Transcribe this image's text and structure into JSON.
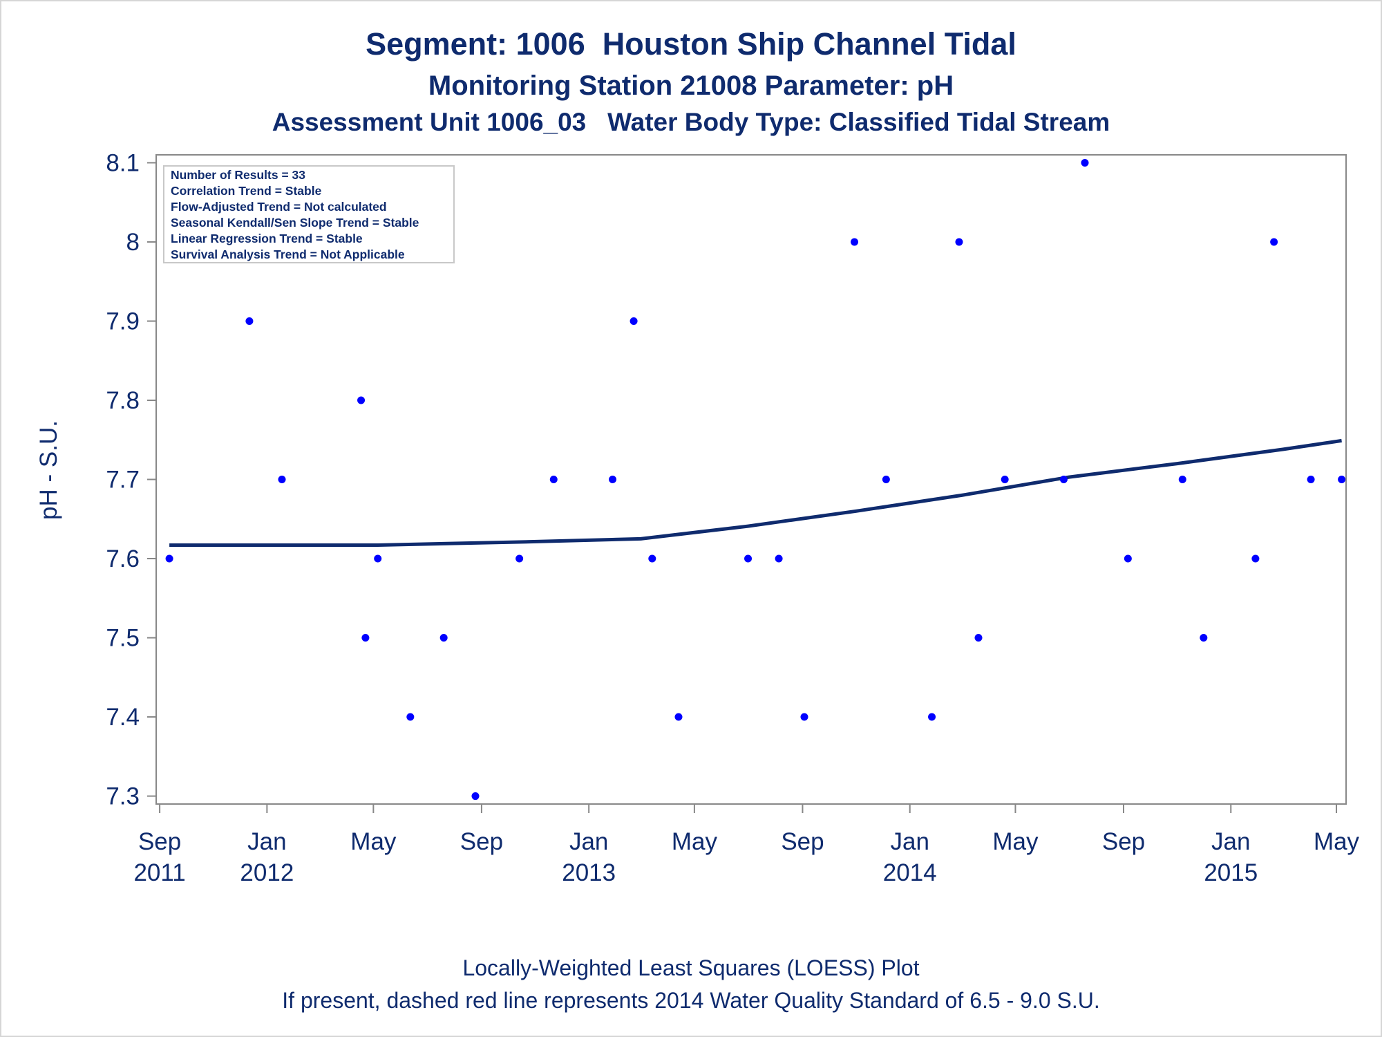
{
  "chart_data": {
    "type": "scatter",
    "title": "Segment: 1006  Houston Ship Channel Tidal",
    "subtitle": "Monitoring Station 21008 Parameter: pH",
    "subtitle2": "Assessment Unit 1006_03   Water Body Type: Classified Tidal Stream",
    "xlabel": "",
    "ylabel": "pH - S.U.",
    "ylim": [
      7.29,
      8.11
    ],
    "yticks": [
      7.3,
      7.4,
      7.5,
      7.6,
      7.7,
      7.8,
      7.9,
      8.0,
      8.1
    ],
    "ytick_labels": [
      "7.3",
      "7.4",
      "7.5",
      "7.6",
      "7.7",
      "7.8",
      "7.9",
      "8",
      "8.1"
    ],
    "xlim": [
      "2011-08-28",
      "2015-05-12"
    ],
    "xticks": [
      {
        "date": "2011-09-01",
        "month": "Sep",
        "year": "2011"
      },
      {
        "date": "2012-01-01",
        "month": "Jan",
        "year": "2012"
      },
      {
        "date": "2012-05-01",
        "month": "May",
        "year": ""
      },
      {
        "date": "2012-09-01",
        "month": "Sep",
        "year": ""
      },
      {
        "date": "2013-01-01",
        "month": "Jan",
        "year": "2013"
      },
      {
        "date": "2013-05-01",
        "month": "May",
        "year": ""
      },
      {
        "date": "2013-09-01",
        "month": "Sep",
        "year": ""
      },
      {
        "date": "2014-01-01",
        "month": "Jan",
        "year": "2014"
      },
      {
        "date": "2014-05-01",
        "month": "May",
        "year": ""
      },
      {
        "date": "2014-09-01",
        "month": "Sep",
        "year": ""
      },
      {
        "date": "2015-01-01",
        "month": "Jan",
        "year": "2015"
      },
      {
        "date": "2015-05-01",
        "month": "May",
        "year": ""
      }
    ],
    "grid": false,
    "series": [
      {
        "type": "scatter",
        "color": "#0000ff",
        "points": [
          {
            "x": "2011-09-12",
            "y": 7.6
          },
          {
            "x": "2011-12-12",
            "y": 7.9
          },
          {
            "x": "2012-01-18",
            "y": 7.7
          },
          {
            "x": "2012-04-17",
            "y": 7.8
          },
          {
            "x": "2012-04-22",
            "y": 7.5
          },
          {
            "x": "2012-05-06",
            "y": 7.6
          },
          {
            "x": "2012-06-12",
            "y": 7.4
          },
          {
            "x": "2012-07-20",
            "y": 7.5
          },
          {
            "x": "2012-08-25",
            "y": 7.3
          },
          {
            "x": "2012-10-14",
            "y": 7.6
          },
          {
            "x": "2012-11-22",
            "y": 7.7
          },
          {
            "x": "2013-01-28",
            "y": 7.7
          },
          {
            "x": "2013-02-21",
            "y": 7.9
          },
          {
            "x": "2013-03-14",
            "y": 7.6
          },
          {
            "x": "2013-04-13",
            "y": 7.4
          },
          {
            "x": "2013-07-01",
            "y": 7.6
          },
          {
            "x": "2013-08-05",
            "y": 7.6
          },
          {
            "x": "2013-09-03",
            "y": 7.4
          },
          {
            "x": "2013-10-30",
            "y": 8.0
          },
          {
            "x": "2013-12-05",
            "y": 7.7
          },
          {
            "x": "2014-01-26",
            "y": 7.4
          },
          {
            "x": "2014-02-26",
            "y": 8.0
          },
          {
            "x": "2014-03-20",
            "y": 7.5
          },
          {
            "x": "2014-04-19",
            "y": 7.7
          },
          {
            "x": "2014-06-25",
            "y": 7.7
          },
          {
            "x": "2014-07-19",
            "y": 8.1
          },
          {
            "x": "2014-09-06",
            "y": 7.6
          },
          {
            "x": "2014-11-07",
            "y": 7.7
          },
          {
            "x": "2014-12-01",
            "y": 7.5
          },
          {
            "x": "2015-01-29",
            "y": 7.6
          },
          {
            "x": "2015-02-19",
            "y": 8.0
          },
          {
            "x": "2015-04-02",
            "y": 7.7
          },
          {
            "x": "2015-05-07",
            "y": 7.7
          }
        ]
      },
      {
        "type": "line",
        "color": "#0f2b6e",
        "points": [
          {
            "x": "2011-09-12",
            "y": 7.617
          },
          {
            "x": "2012-05-06",
            "y": 7.617
          },
          {
            "x": "2012-10-14",
            "y": 7.621
          },
          {
            "x": "2013-03-01",
            "y": 7.625
          },
          {
            "x": "2013-07-01",
            "y": 7.641
          },
          {
            "x": "2013-11-01",
            "y": 7.66
          },
          {
            "x": "2014-03-01",
            "y": 7.68
          },
          {
            "x": "2014-07-01",
            "y": 7.703
          },
          {
            "x": "2014-11-01",
            "y": 7.72
          },
          {
            "x": "2015-03-01",
            "y": 7.738
          },
          {
            "x": "2015-05-07",
            "y": 7.749
          }
        ]
      }
    ]
  },
  "stats_box": {
    "lines": [
      "Number of Results = 33",
      "Correlation Trend = Stable",
      "Flow-Adjusted Trend = Not calculated",
      "Seasonal Kendall/Sen Slope Trend = Stable",
      "Linear Regression Trend = Stable",
      "Survival Analysis Trend = Not Applicable"
    ]
  },
  "footnotes": {
    "line1": "Locally-Weighted Least Squares (LOESS) Plot",
    "line2": "If present, dashed red line represents 2014 Water Quality Standard of 6.5 - 9.0 S.U."
  },
  "colors": {
    "text": "#0f2b6e",
    "points": "#0000ff",
    "trend_line": "#0f2b6e",
    "axis": "#888888"
  }
}
